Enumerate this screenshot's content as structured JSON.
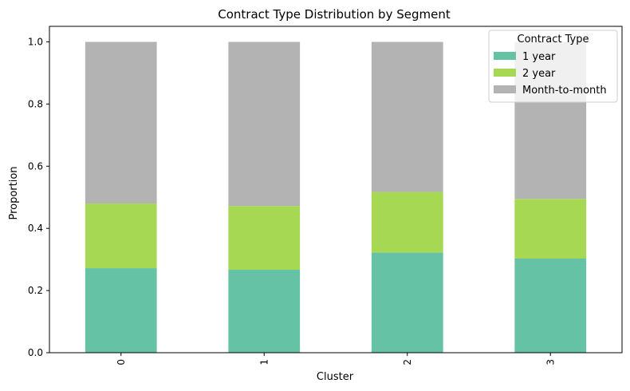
{
  "chart_data": {
    "type": "bar",
    "stacked": true,
    "title": "Contract Type Distribution by Segment",
    "xlabel": "Cluster",
    "ylabel": "Proportion",
    "categories": [
      "0",
      "1",
      "2",
      "3"
    ],
    "ylim": [
      0,
      1.05
    ],
    "yticks": [
      "0.0",
      "0.2",
      "0.4",
      "0.6",
      "0.8",
      "1.0"
    ],
    "legend": {
      "title": "Contract Type",
      "placement": "top-right"
    },
    "series": [
      {
        "name": "1 year",
        "color": "#66c2a5",
        "values": [
          0.272,
          0.267,
          0.322,
          0.303
        ]
      },
      {
        "name": "2 year",
        "color": "#a6d854",
        "values": [
          0.208,
          0.205,
          0.195,
          0.192
        ]
      },
      {
        "name": "Month-to-month",
        "color": "#b3b3b3",
        "values": [
          0.52,
          0.528,
          0.483,
          0.505
        ]
      }
    ]
  }
}
